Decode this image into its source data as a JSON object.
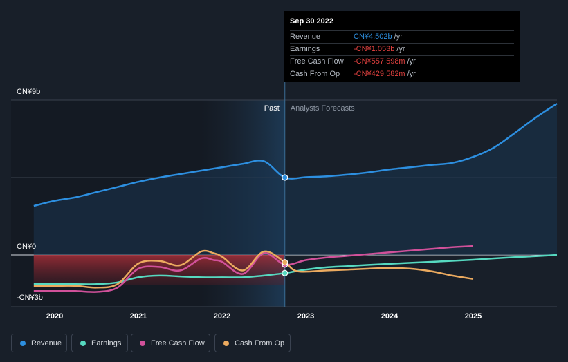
{
  "chart_data": {
    "type": "line",
    "y_axis_labels": [
      "CN¥9b",
      "CN¥0",
      "-CN¥3b"
    ],
    "ylim": [
      -3,
      9
    ],
    "x_tick_labels": [
      "2020",
      "2021",
      "2022",
      "2023",
      "2024",
      "2025"
    ],
    "xlim": [
      2019.75,
      2026.0
    ],
    "divider_x": 2022.75,
    "past_label": "Past",
    "forecast_label": "Analysts Forecasts",
    "series": [
      {
        "name": "Revenue",
        "color": "#2d8fe0",
        "x": [
          2019.75,
          2020.0,
          2020.25,
          2020.5,
          2020.75,
          2021.0,
          2021.25,
          2021.5,
          2021.75,
          2022.0,
          2022.25,
          2022.5,
          2022.75,
          2023.0,
          2023.25,
          2023.5,
          2023.75,
          2024.0,
          2024.25,
          2024.5,
          2024.75,
          2025.0,
          2025.25,
          2025.5,
          2025.75,
          2026.0
        ],
        "y": [
          2.85,
          3.15,
          3.35,
          3.65,
          3.95,
          4.25,
          4.5,
          4.7,
          4.9,
          5.1,
          5.3,
          5.45,
          4.502,
          4.52,
          4.57,
          4.67,
          4.8,
          4.97,
          5.1,
          5.23,
          5.35,
          5.7,
          6.25,
          7.1,
          8.0,
          8.8
        ]
      },
      {
        "name": "Earnings",
        "color": "#56d9c0",
        "x": [
          2019.75,
          2020.0,
          2020.25,
          2020.5,
          2020.75,
          2021.0,
          2021.25,
          2021.5,
          2021.75,
          2022.0,
          2022.25,
          2022.5,
          2022.75,
          2023.0,
          2023.25,
          2023.5,
          2023.75,
          2024.0,
          2024.25,
          2024.5,
          2024.75,
          2025.0,
          2025.25,
          2025.5,
          2025.75,
          2026.0
        ],
        "y": [
          -1.7,
          -1.7,
          -1.7,
          -1.7,
          -1.6,
          -1.3,
          -1.2,
          -1.25,
          -1.3,
          -1.3,
          -1.3,
          -1.2,
          -1.053,
          -0.85,
          -0.72,
          -0.65,
          -0.58,
          -0.52,
          -0.46,
          -0.4,
          -0.34,
          -0.28,
          -0.2,
          -0.13,
          -0.07,
          0.0
        ]
      },
      {
        "name": "Free Cash Flow",
        "color": "#d1519a",
        "x": [
          2019.75,
          2020.0,
          2020.25,
          2020.5,
          2020.75,
          2021.0,
          2021.25,
          2021.5,
          2021.75,
          2021.9,
          2022.0,
          2022.25,
          2022.5,
          2022.75,
          2023.0,
          2023.25,
          2023.5,
          2023.75,
          2024.0,
          2024.25,
          2024.5,
          2024.75,
          2025.0
        ],
        "y": [
          -2.1,
          -2.1,
          -2.1,
          -2.15,
          -1.9,
          -0.8,
          -0.7,
          -0.9,
          -0.2,
          -0.3,
          -0.4,
          -1.1,
          0.1,
          -0.5578,
          -0.3,
          -0.15,
          -0.05,
          0.05,
          0.15,
          0.25,
          0.35,
          0.45,
          0.52
        ]
      },
      {
        "name": "Cash From Op",
        "color": "#ebaa5f",
        "x": [
          2019.75,
          2020.0,
          2020.25,
          2020.5,
          2020.75,
          2021.0,
          2021.25,
          2021.5,
          2021.75,
          2021.9,
          2022.0,
          2022.25,
          2022.5,
          2022.75,
          2022.9,
          2023.25,
          2023.5,
          2023.75,
          2024.0,
          2024.25,
          2024.5,
          2024.75,
          2025.0
        ],
        "y": [
          -1.8,
          -1.8,
          -1.8,
          -1.9,
          -1.7,
          -0.5,
          -0.35,
          -0.6,
          0.2,
          0.1,
          -0.1,
          -0.9,
          0.2,
          -0.4296,
          -0.95,
          -0.9,
          -0.85,
          -0.8,
          -0.75,
          -0.8,
          -0.95,
          -1.2,
          -1.4
        ]
      }
    ],
    "legend_position": "bottom"
  },
  "tooltip": {
    "date": "Sep 30 2022",
    "rows": [
      {
        "label": "Revenue",
        "value": "CN¥4.502b",
        "unit": "/yr",
        "color": "#2d8fe0"
      },
      {
        "label": "Earnings",
        "value": "-CN¥1.053b",
        "unit": "/yr",
        "color": "#e0413f"
      },
      {
        "label": "Free Cash Flow",
        "value": "-CN¥557.598m",
        "unit": "/yr",
        "color": "#e0413f"
      },
      {
        "label": "Cash From Op",
        "value": "-CN¥429.582m",
        "unit": "/yr",
        "color": "#e0413f"
      }
    ]
  },
  "legend": [
    {
      "label": "Revenue",
      "color": "#2d8fe0"
    },
    {
      "label": "Earnings",
      "color": "#56d9c0"
    },
    {
      "label": "Free Cash Flow",
      "color": "#d1519a"
    },
    {
      "label": "Cash From Op",
      "color": "#ebaa5f"
    }
  ]
}
